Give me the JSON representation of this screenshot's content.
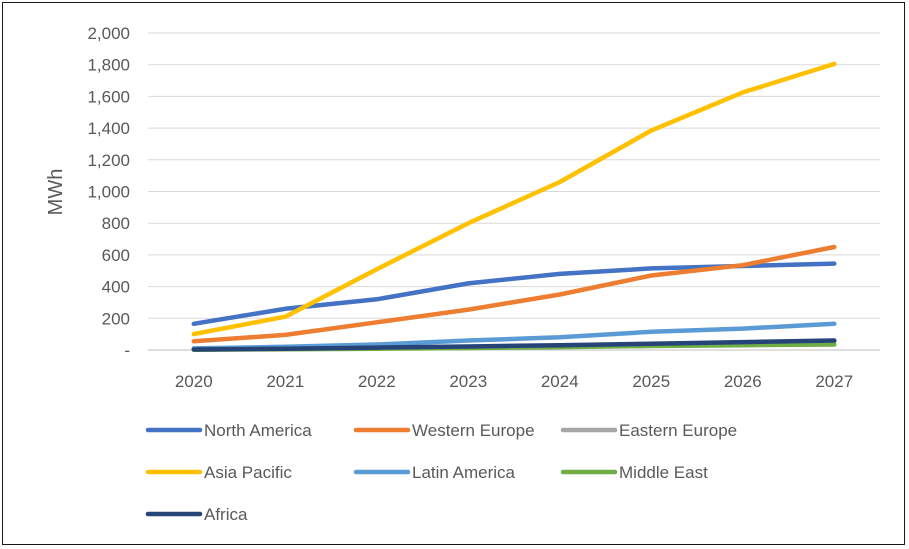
{
  "chart_data": {
    "type": "line",
    "title": "",
    "xlabel": "",
    "ylabel": "MWh",
    "ylim": [
      0,
      2000
    ],
    "yticks": [
      0,
      200,
      400,
      600,
      800,
      1000,
      1200,
      1400,
      1600,
      1800,
      2000
    ],
    "ytick_labels": [
      "-",
      "200",
      "400",
      "600",
      "800",
      "1,000",
      "1,200",
      "1,400",
      "1,600",
      "1,800",
      "2,000"
    ],
    "grid": true,
    "legend_position": "bottom",
    "categories": [
      "2020",
      "2021",
      "2022",
      "2023",
      "2024",
      "2025",
      "2026",
      "2027"
    ],
    "series": [
      {
        "name": "North America",
        "color": "#4472c4",
        "values": [
          165,
          260,
          320,
          420,
          480,
          515,
          530,
          545
        ]
      },
      {
        "name": "Western Europe",
        "color": "#ed7d31",
        "values": [
          55,
          95,
          175,
          255,
          350,
          470,
          535,
          650
        ]
      },
      {
        "name": "Eastern Europe",
        "color": "#a5a5a5",
        "values": [
          5,
          10,
          15,
          20,
          25,
          35,
          45,
          55
        ]
      },
      {
        "name": "Asia Pacific",
        "color": "#ffc000",
        "values": [
          100,
          210,
          510,
          800,
          1060,
          1385,
          1625,
          1805
        ]
      },
      {
        "name": "Latin America",
        "color": "#5b9bd5",
        "values": [
          10,
          20,
          35,
          60,
          80,
          115,
          135,
          165
        ]
      },
      {
        "name": "Middle East",
        "color": "#70ad47",
        "values": [
          2,
          5,
          8,
          12,
          18,
          25,
          30,
          35
        ]
      },
      {
        "name": "Africa",
        "color": "#264478",
        "values": [
          3,
          8,
          15,
          22,
          30,
          40,
          50,
          60
        ]
      }
    ]
  }
}
